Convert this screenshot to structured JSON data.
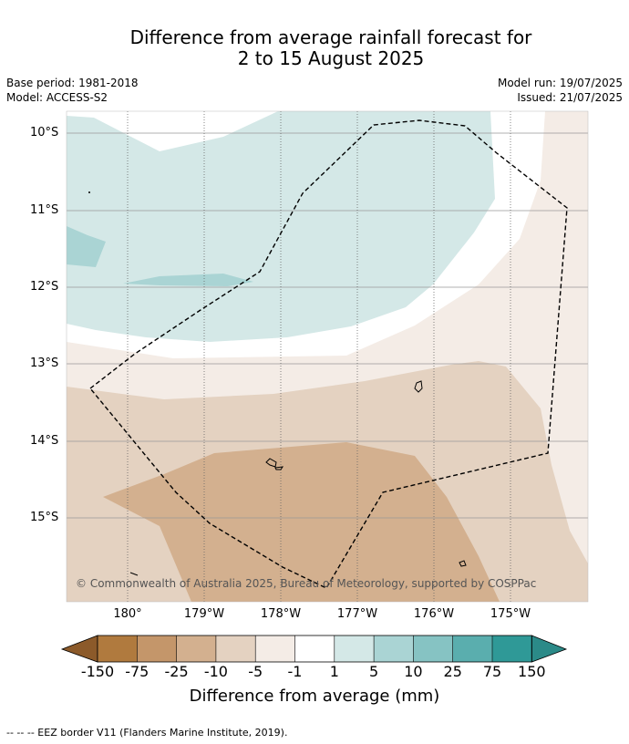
{
  "title_line1": "Difference from average rainfall forecast for",
  "title_line2": "2 to 15 August 2025",
  "meta": {
    "base_period": "Base period: 1981-2018",
    "model": "Model: ACCESS-S2",
    "model_run": "Model run: 19/07/2025",
    "issued": "Issued: 21/07/2025"
  },
  "lat_labels": [
    "10°S",
    "11°S",
    "12°S",
    "13°S",
    "14°S",
    "15°S"
  ],
  "lon_labels": [
    "180°",
    "179°W",
    "178°W",
    "177°W",
    "176°W",
    "175°W"
  ],
  "copyright": "© Commonwealth of Australia 2025, Bureau of Meteorology, supported by COSPPac",
  "colorbar": {
    "title": "Difference from average (mm)",
    "labels": [
      "-150",
      "-75",
      "-25",
      "-10",
      "-5",
      "-1",
      "1",
      "5",
      "10",
      "25",
      "75",
      "150"
    ],
    "colors": [
      "#8c5a2a",
      "#b07a3e",
      "#c4966a",
      "#d3b08f",
      "#e4d2c1",
      "#f4ece6",
      "#ffffff",
      "#d4e8e7",
      "#aad4d4",
      "#86c3c3",
      "#5aaeae",
      "#2f9997",
      "#2b8a88"
    ]
  },
  "footer": "-- -- -- EEZ border V11 (Flanders Marine Institute, 2019)."
}
